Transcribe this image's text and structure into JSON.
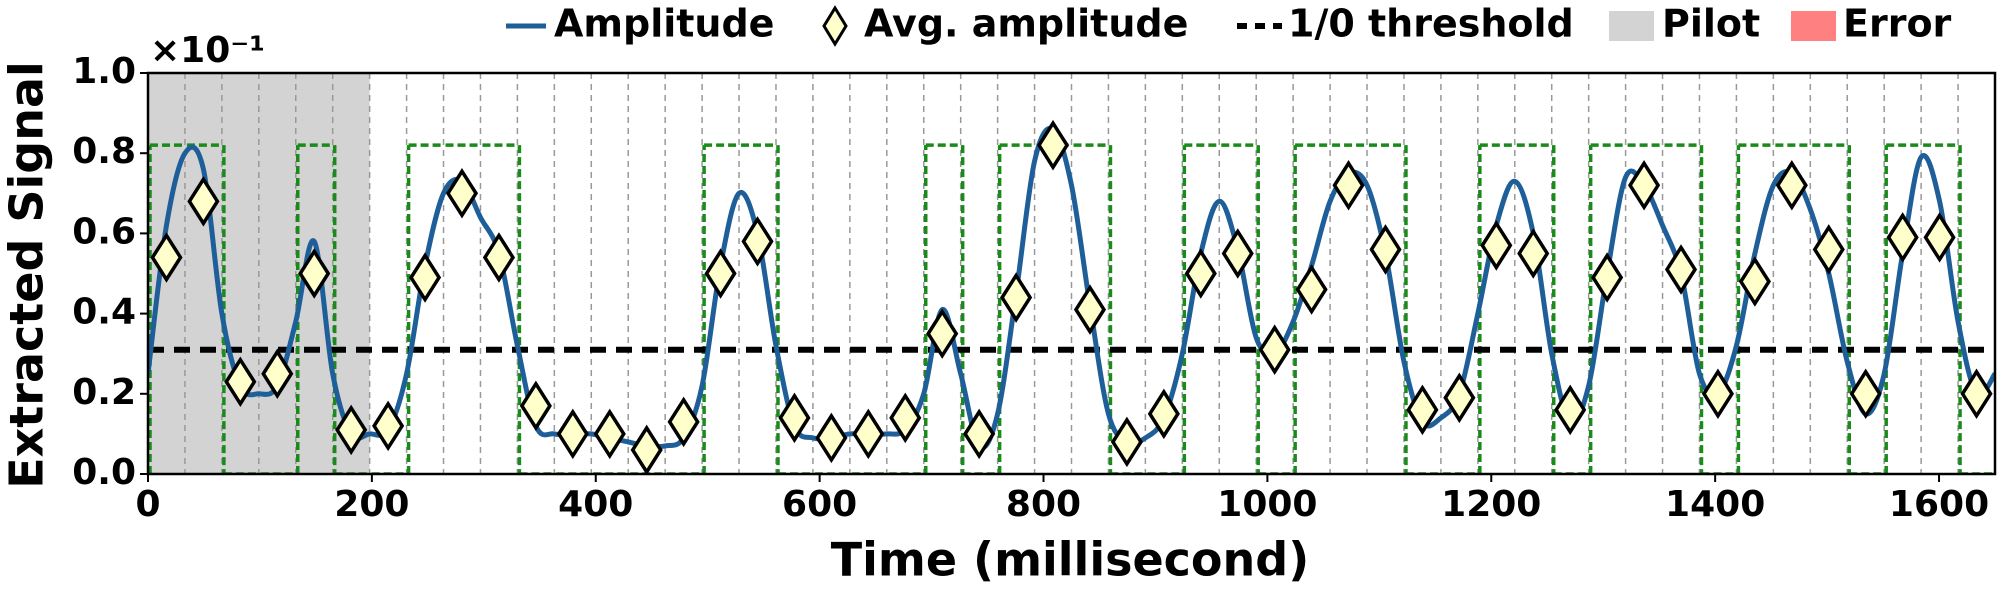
{
  "chart_data": {
    "type": "line",
    "x_label": "Time (millisecond)",
    "y_label": "Extracted Signal",
    "y_offset_label": "×10⁻¹",
    "xlim": [
      0,
      1650
    ],
    "ylim": [
      0,
      1
    ],
    "xticks": [
      0,
      200,
      400,
      600,
      800,
      1000,
      1200,
      1400,
      1600
    ],
    "yticks": [
      {
        "value": 0,
        "label": "0.0"
      },
      {
        "value": 0.2,
        "label": "0.2"
      },
      {
        "value": 0.4,
        "label": "0.4"
      },
      {
        "value": 0.6,
        "label": "0.6"
      },
      {
        "value": 0.8,
        "label": "0.8"
      },
      {
        "value": 1,
        "label": "1.0"
      }
    ],
    "legend": "top",
    "series": [
      {
        "name": "Amplitude",
        "kind": "line",
        "color": "#1f5f99",
        "x": [
          0,
          16.5,
          33,
          49.5,
          66,
          82.5,
          99,
          115.5,
          132,
          148.5,
          165,
          181.5,
          198,
          214.5,
          231,
          247.5,
          264,
          280.5,
          297,
          313.5,
          330,
          346.5,
          363,
          379.5,
          396,
          412.5,
          429,
          445.5,
          462,
          478.5,
          495,
          511.5,
          528,
          544.5,
          561,
          577.5,
          594,
          610.5,
          627,
          643.5,
          660,
          676.5,
          693,
          709.5,
          726,
          742.5,
          759,
          775.5,
          792,
          808.5,
          825,
          841.5,
          858,
          874.5,
          891,
          907.5,
          924,
          940.5,
          957,
          973.5,
          990,
          1006.5,
          1023,
          1039.5,
          1056,
          1072.5,
          1089,
          1105.5,
          1122,
          1138.5,
          1155,
          1171.5,
          1188,
          1204.5,
          1221,
          1237.5,
          1254,
          1270.5,
          1287,
          1303.5,
          1320,
          1336.5,
          1353,
          1369.5,
          1386,
          1402.5,
          1419,
          1435.5,
          1452,
          1468.5,
          1485,
          1501.5,
          1518,
          1534.5,
          1551,
          1567.5,
          1584,
          1600.5,
          1617,
          1633.5,
          1650
        ],
        "values": [
          0.25,
          0.62,
          0.8,
          0.76,
          0.4,
          0.22,
          0.2,
          0.22,
          0.38,
          0.58,
          0.25,
          0.1,
          0.1,
          0.11,
          0.25,
          0.52,
          0.7,
          0.73,
          0.64,
          0.55,
          0.32,
          0.12,
          0.1,
          0.1,
          0.1,
          0.09,
          0.08,
          0.07,
          0.07,
          0.09,
          0.22,
          0.52,
          0.7,
          0.6,
          0.32,
          0.12,
          0.09,
          0.09,
          0.1,
          0.1,
          0.1,
          0.11,
          0.2,
          0.41,
          0.25,
          0.07,
          0.15,
          0.45,
          0.78,
          0.86,
          0.72,
          0.42,
          0.15,
          0.08,
          0.09,
          0.14,
          0.3,
          0.55,
          0.68,
          0.56,
          0.34,
          0.3,
          0.38,
          0.52,
          0.68,
          0.75,
          0.72,
          0.55,
          0.28,
          0.13,
          0.14,
          0.2,
          0.4,
          0.62,
          0.73,
          0.6,
          0.3,
          0.13,
          0.22,
          0.5,
          0.74,
          0.72,
          0.62,
          0.5,
          0.25,
          0.2,
          0.32,
          0.55,
          0.72,
          0.75,
          0.66,
          0.5,
          0.28,
          0.15,
          0.25,
          0.55,
          0.79,
          0.68,
          0.38,
          0.2,
          0.25
        ]
      },
      {
        "name": "Avg. amplitude",
        "kind": "diamond",
        "color": "#ffffcc",
        "x": [
          16.5,
          49.5,
          82.5,
          115.5,
          148.5,
          181.5,
          214.5,
          247.5,
          280.5,
          313.5,
          346.5,
          379.5,
          412.5,
          445.5,
          478.5,
          511.5,
          544.5,
          577.5,
          610.5,
          643.5,
          676.5,
          709.5,
          742.5,
          775.5,
          808.5,
          841.5,
          874.5,
          907.5,
          940.5,
          973.5,
          1006.5,
          1039.5,
          1072.5,
          1105.5,
          1138.5,
          1171.5,
          1204.5,
          1237.5,
          1270.5,
          1303.5,
          1336.5,
          1369.5,
          1402.5,
          1435.5,
          1468.5,
          1501.5,
          1534.5,
          1567.5,
          1600.5,
          1633.5
        ],
        "values": [
          0.54,
          0.68,
          0.23,
          0.25,
          0.5,
          0.11,
          0.12,
          0.49,
          0.7,
          0.54,
          0.17,
          0.1,
          0.1,
          0.06,
          0.13,
          0.5,
          0.58,
          0.14,
          0.09,
          0.1,
          0.14,
          0.35,
          0.1,
          0.44,
          0.82,
          0.41,
          0.08,
          0.15,
          0.5,
          0.55,
          0.31,
          0.46,
          0.72,
          0.56,
          0.16,
          0.19,
          0.57,
          0.55,
          0.16,
          0.49,
          0.72,
          0.51,
          0.2,
          0.48,
          0.72,
          0.56,
          0.2,
          0.59,
          0.59,
          0.2
        ]
      }
    ],
    "threshold": {
      "name": "1/0 threshold",
      "color": "#000000",
      "value": 0.31
    },
    "pilot": {
      "name": "Pilot",
      "color": "#d3d3d3",
      "span": [
        0,
        198
      ]
    },
    "error": {
      "name": "Error",
      "color": "#ff8080"
    },
    "bit_wave": {
      "color": "#1a8a1a",
      "values": [
        0.82,
        0.82,
        0,
        0,
        0.82,
        0,
        0,
        0.82,
        0.82,
        0.82,
        0,
        0,
        0,
        0,
        0,
        0.82,
        0.82,
        0,
        0,
        0,
        0,
        0.82,
        0,
        0.82,
        0.82,
        0.82,
        0,
        0,
        0.82,
        0.82,
        0,
        0.82,
        0.82,
        0.82,
        0,
        0,
        0.82,
        0.82,
        0,
        0.82,
        0.82,
        0.82,
        0,
        0.82,
        0.82,
        0.82,
        0,
        0.82,
        0.82,
        0
      ]
    }
  }
}
